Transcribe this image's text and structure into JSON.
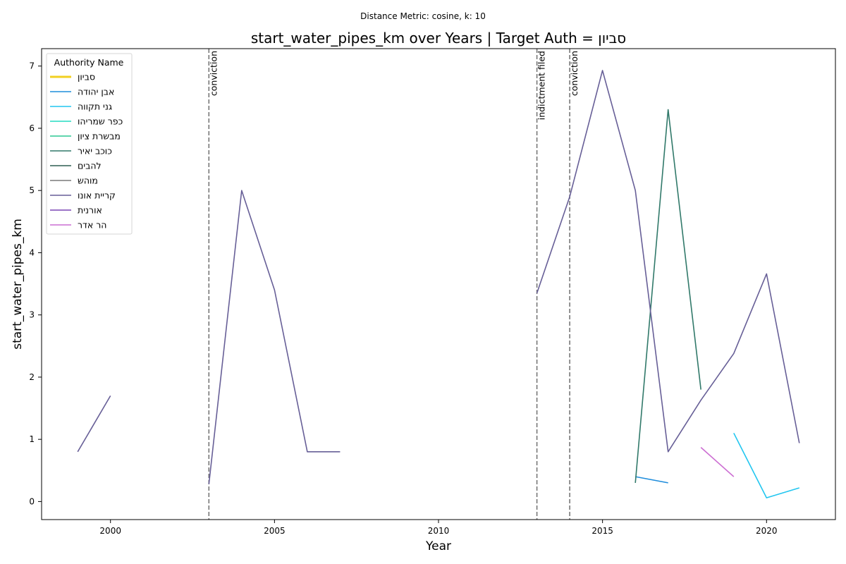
{
  "chart_data": {
    "type": "line",
    "suptitle": "Distance Metric: cosine, k: 10",
    "title": "start_water_pipes_km over Years | Target Auth = סביון",
    "xlabel": "Year",
    "ylabel": "start_water_pipes_km",
    "xlim": [
      1997.9,
      2022.1
    ],
    "ylim": [
      -0.29,
      7.28
    ],
    "xticks": [
      "2000",
      "2005",
      "2010",
      "2015",
      "2020"
    ],
    "yticks": [
      "0",
      "1",
      "2",
      "3",
      "4",
      "5",
      "6",
      "7"
    ],
    "legend_title": "Authority Name",
    "legend_position": "upper-left",
    "grid": false,
    "series": [
      {
        "name": "סביון",
        "color": "#f2d021",
        "width": 3,
        "points": []
      },
      {
        "name": "אבן יהודה",
        "color": "#1f8ddc",
        "width": 1.6,
        "points": [
          [
            2016,
            0.4
          ],
          [
            2017,
            0.3
          ]
        ]
      },
      {
        "name": "גני תקווה",
        "color": "#22c6f0",
        "width": 1.6,
        "points": [
          [
            2019,
            1.1
          ],
          [
            2020,
            0.06
          ],
          [
            2021,
            0.22
          ]
        ]
      },
      {
        "name": "כפר שמריהו",
        "color": "#24dcc0",
        "width": 1.6,
        "points": []
      },
      {
        "name": "מבשרת ציון",
        "color": "#2dc792",
        "width": 1.6,
        "points": []
      },
      {
        "name": "כוכב יאיר",
        "color": "#31796a",
        "width": 1.6,
        "points": [
          [
            2016,
            0.3
          ],
          [
            2017,
            6.3
          ],
          [
            2018,
            1.8
          ]
        ]
      },
      {
        "name": "להבים",
        "color": "#2e5e52",
        "width": 1.6,
        "points": []
      },
      {
        "name": "מוהש",
        "color": "#7a7a7a",
        "width": 1.6,
        "points": []
      },
      {
        "name": "קריית אונו",
        "color": "#675f97",
        "width": 1.6,
        "segments": [
          [
            [
              1999,
              0.8
            ],
            [
              2000,
              1.7
            ]
          ],
          [
            [
              2003,
              0.28
            ],
            [
              2004,
              5.0
            ],
            [
              2005,
              3.4
            ],
            [
              2006,
              0.8
            ],
            [
              2007,
              0.8
            ]
          ],
          [
            [
              2013,
              3.35
            ],
            [
              2014,
              4.9
            ],
            [
              2015,
              6.93
            ],
            [
              2016,
              5.0
            ],
            [
              2017,
              0.8
            ],
            [
              2018,
              1.63
            ],
            [
              2019,
              2.38
            ],
            [
              2020,
              3.66
            ],
            [
              2021,
              0.94
            ]
          ]
        ]
      },
      {
        "name": "אורנית",
        "color": "#7b46b5",
        "width": 1.6,
        "points": []
      },
      {
        "name": "הר אדר",
        "color": "#cc6ed2",
        "width": 1.6,
        "points": [
          [
            2018,
            0.87
          ],
          [
            2019,
            0.4
          ]
        ]
      }
    ],
    "events": [
      {
        "x": 2003,
        "label": "conviction"
      },
      {
        "x": 2013,
        "label": "indictment filed"
      },
      {
        "x": 2014,
        "label": "conviction"
      }
    ]
  }
}
